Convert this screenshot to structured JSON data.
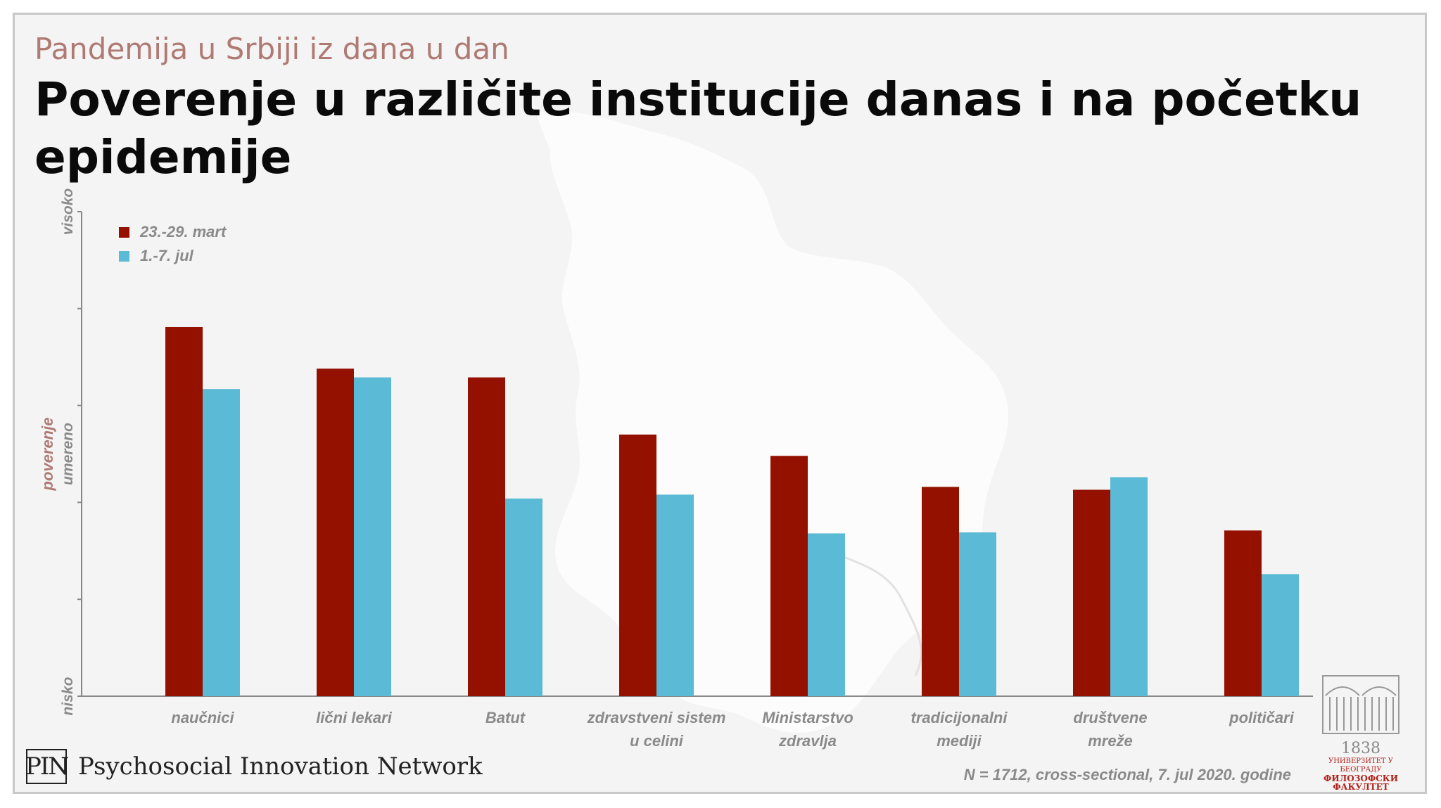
{
  "header": {
    "subtitle": "Pandemija u Srbiji iz dana u dan",
    "title": "Poverenje u različite institucije danas i na početku epidemije"
  },
  "colors": {
    "march": "#941100",
    "july": "#5bbad5",
    "accent_text": "#b07a74"
  },
  "legend": {
    "march_label": "23.-29. mart",
    "july_label": "1.-7. jul"
  },
  "footer": {
    "org_logo": "PIN",
    "org_name": "Psychosocial Innovation Network",
    "note": "N = 1712, cross-sectional, 7. jul 2020. godine",
    "university_year": "1838",
    "university_line1": "УНИВЕРЗИТЕТ У БЕОГРАДУ",
    "university_line2": "ФИЛОЗОФСКИ ФАКУЛТЕТ"
  },
  "chart_data": {
    "type": "bar",
    "ylabel": "poverenje",
    "ylim": [
      0,
      5
    ],
    "y_tick_labels": [
      {
        "value": 0,
        "text": "nisko"
      },
      {
        "value": 2.5,
        "text": "umereno"
      },
      {
        "value": 5,
        "text": "visoko"
      }
    ],
    "grid": false,
    "legend_position": "top-left",
    "categories": [
      [
        "naučnici"
      ],
      [
        "lični lekari"
      ],
      [
        "Batut"
      ],
      [
        "zdravstveni sistem",
        "u celini"
      ],
      [
        "Ministarstvo",
        "zdravlja"
      ],
      [
        "tradicijonalni",
        "mediji"
      ],
      [
        "društvene",
        "mreže"
      ],
      [
        "političari"
      ]
    ],
    "series": [
      {
        "name": "23.-29. mart",
        "values": [
          3.81,
          3.38,
          3.29,
          2.7,
          2.48,
          2.16,
          2.13,
          1.71
        ]
      },
      {
        "name": "1.-7. jul",
        "values": [
          3.17,
          3.29,
          2.04,
          2.08,
          1.68,
          1.69,
          2.26,
          1.26
        ]
      }
    ]
  }
}
